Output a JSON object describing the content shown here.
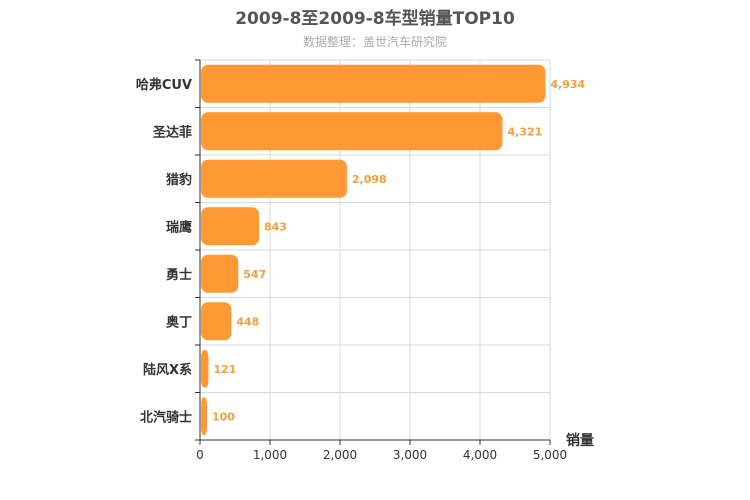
{
  "chart_data": {
    "type": "bar",
    "orientation": "horizontal",
    "title": "2009-8至2009-8车型销量TOP10",
    "subtitle": "数据整理：盖世汽车研究院",
    "xlabel": "销量",
    "ylabel": "",
    "xlim": [
      0,
      5000
    ],
    "x_ticks": [
      "0",
      "1,000",
      "2,000",
      "3,000",
      "4,000",
      "5,000"
    ],
    "categories": [
      "哈弗CUV",
      "圣达菲",
      "猎豹",
      "瑞鹰",
      "勇士",
      "奥丁",
      "陆风X系",
      "北汽骑士"
    ],
    "values": [
      4934,
      4321,
      2098,
      843,
      547,
      448,
      121,
      100
    ],
    "value_labels": [
      "4,934",
      "4,321",
      "2,098",
      "843",
      "547",
      "448",
      "121",
      "100"
    ],
    "grid": true,
    "bar_color": "#ff9933",
    "label_color": "#f0a040"
  }
}
